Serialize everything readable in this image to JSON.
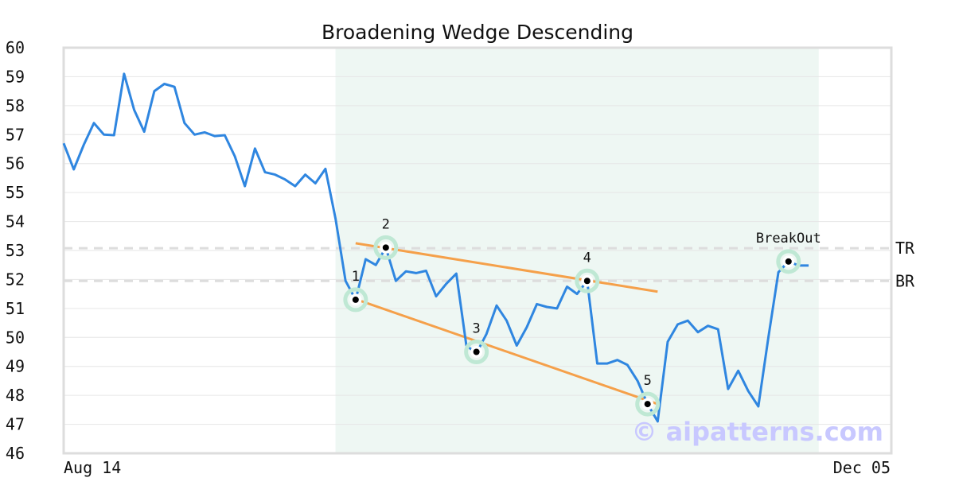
{
  "chart_data": {
    "type": "line",
    "title": "Broadening Wedge Descending",
    "ylim": [
      46,
      60
    ],
    "yticks": [
      46,
      47,
      48,
      49,
      50,
      51,
      52,
      53,
      54,
      55,
      56,
      57,
      58,
      59,
      60
    ],
    "x_labels": {
      "start": "Aug 14",
      "end": "Dec 05"
    },
    "grid": true,
    "colors": {
      "line": "#2f86e0",
      "wedge": "#f5a04a",
      "shade": "#eef7f3",
      "marker_halo": "#bfe8d4",
      "level": "#dddddd"
    },
    "series": [
      {
        "values": [
          56.7,
          55.8,
          56.65,
          57.4,
          57.0,
          56.98,
          59.1,
          57.85,
          57.1,
          58.5,
          58.75,
          58.65,
          57.4,
          57.0,
          57.08,
          56.95,
          56.98,
          56.25,
          55.22,
          56.52,
          55.7,
          55.62,
          55.45,
          55.22,
          55.62,
          55.32,
          55.82,
          54.1,
          51.95,
          51.3,
          52.7,
          52.5,
          53.1,
          51.95,
          52.28,
          52.22,
          52.3,
          51.42,
          51.85,
          52.2,
          49.72,
          49.45,
          50.12,
          51.1,
          50.58,
          49.72,
          50.35,
          51.15,
          51.05,
          51.0,
          51.75,
          51.5,
          51.95,
          49.1,
          49.1,
          49.22,
          49.05,
          48.5,
          47.7,
          47.1,
          49.85,
          50.45,
          50.58,
          50.18,
          50.4,
          50.28,
          48.22,
          48.85,
          48.15,
          47.62,
          50.0,
          52.25,
          52.62,
          52.48,
          52.48
        ]
      }
    ],
    "shaded_range": {
      "start_index": 27,
      "end_index": 75
    },
    "wedge_lines": [
      {
        "from": [
          29,
          53.25
        ],
        "to": [
          59,
          51.58
        ]
      },
      {
        "from": [
          29,
          51.32
        ],
        "to": [
          59,
          47.7
        ]
      }
    ],
    "points": [
      {
        "label": "1",
        "index": 29,
        "value": 51.3
      },
      {
        "label": "2",
        "index": 32,
        "value": 53.1
      },
      {
        "label": "3",
        "index": 41,
        "value": 49.5
      },
      {
        "label": "4",
        "index": 52,
        "value": 51.95
      },
      {
        "label": "5",
        "index": 58,
        "value": 47.7
      },
      {
        "label": "BreakOut",
        "index": 72,
        "value": 52.62
      }
    ],
    "levels": [
      {
        "label": "TR",
        "value": 53.08
      },
      {
        "label": "BR",
        "value": 51.95
      }
    ]
  },
  "watermark": "© aipatterns.com"
}
